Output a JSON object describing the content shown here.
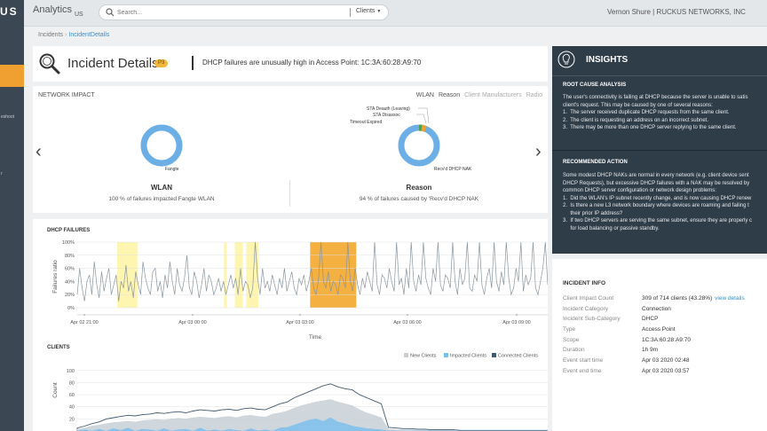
{
  "sidebar": {
    "logo": "US",
    "item_fragments": [
      "eshoot",
      "r"
    ]
  },
  "topbar": {
    "app_title": "Analytics",
    "region": "US",
    "search_placeholder": "Search...",
    "search_scope": "Clients",
    "user": "Vernon Shure | RUCKUS NETWORKS, INC"
  },
  "breadcrumb": {
    "root": "Incidents",
    "separator": "›",
    "current": "IncidentDetails"
  },
  "header": {
    "title": "Incident Details",
    "priority": "P3",
    "headline": "DHCP failures are unusually high in Access Point: 1C:3A:60:28:A9:70"
  },
  "impact": {
    "title": "NETWORK IMPACT",
    "tabs": [
      "WLAN",
      "Reason",
      "Client Manufacturers",
      "Radio"
    ],
    "wlan": {
      "heading": "WLAN",
      "summary": "100 % of failures impacted Fangte WLAN",
      "slices": [
        {
          "label": "Fangte",
          "value": 100
        }
      ]
    },
    "reason": {
      "heading": "Reason",
      "summary": "94 % of failures caused by 'Recv'd DHCP NAK",
      "slices": [
        {
          "label": "Recv'd DHCP NAK",
          "value": 94
        },
        {
          "label": "Timeout Expired",
          "value": 2
        },
        {
          "label": "STA Disassoc",
          "value": 2
        },
        {
          "label": "STA Deauth (Leaving)",
          "value": 2
        }
      ]
    },
    "arrow_left": "‹",
    "arrow_right": "›"
  },
  "dhcp_chart": {
    "title": "DHCP FAILURES",
    "ylabel": "Failures ratio",
    "xlabel": "Time",
    "yticks": [
      "100%",
      "80%",
      "60%",
      "40%",
      "20%",
      "0%"
    ],
    "xticks": [
      "Apr 02 21:00",
      "Apr 03 00:00",
      "Apr 03 03:00",
      "Apr 03 06:00",
      "Apr 03 09:00"
    ]
  },
  "clients_chart": {
    "title": "CLIENTS",
    "ylabel": "Count",
    "yticks": [
      "100",
      "80",
      "60",
      "40",
      "20"
    ],
    "legend": [
      "New Clients",
      "Impacted Clients",
      "Connected Clients"
    ]
  },
  "chart_data": [
    {
      "type": "line",
      "title": "DHCP FAILURES",
      "ylabel": "Failures ratio",
      "xlabel": "Time",
      "ylim": [
        0,
        100
      ],
      "x_ticks": [
        "Apr 02 21:00",
        "Apr 03 00:00",
        "Apr 03 03:00",
        "Apr 03 06:00",
        "Apr 03 09:00"
      ],
      "series": [
        {
          "values": [
            20,
            60,
            30,
            10,
            40,
            50,
            20,
            70,
            35,
            15,
            55,
            25,
            45,
            60,
            20,
            35,
            50,
            10,
            40,
            30,
            65,
            25,
            40,
            15,
            55,
            35,
            20,
            70,
            45,
            30,
            20,
            55,
            60,
            25,
            40,
            15,
            50,
            30,
            70,
            40,
            20,
            60,
            35,
            25,
            45,
            80,
            30,
            20,
            55,
            40,
            15,
            35,
            60,
            25,
            50,
            40,
            20,
            30,
            45,
            25,
            40,
            20,
            35,
            50,
            30,
            45,
            20,
            60,
            25,
            40,
            35,
            15,
            30,
            100,
            45,
            20,
            60,
            30,
            40,
            25,
            50,
            35,
            20,
            45,
            30,
            60,
            25,
            40,
            55,
            30,
            20,
            45,
            35,
            50,
            25,
            40,
            60,
            30,
            20,
            45,
            100,
            40,
            30,
            55,
            25,
            40,
            35,
            20,
            50,
            45,
            30,
            100,
            40,
            25,
            60,
            35,
            20,
            45,
            30,
            55,
            40,
            25,
            100,
            35,
            20,
            50,
            45,
            30,
            60,
            40,
            25,
            100,
            35,
            45,
            20,
            60,
            30,
            100,
            40,
            25,
            50,
            35,
            100,
            45,
            30,
            20,
            60,
            40,
            100,
            35,
            25,
            50,
            45,
            30,
            100,
            40,
            20,
            60,
            35,
            45,
            100,
            30,
            25,
            50,
            40,
            100,
            35,
            20,
            45,
            60,
            30,
            100,
            40,
            25,
            55,
            35,
            100,
            45,
            20,
            30,
            60,
            40,
            100,
            25,
            50,
            35,
            45,
            100,
            30,
            20,
            40,
            60,
            100,
            35
          ]
        }
      ],
      "highlight_bands": [
        {
          "from": 0.085,
          "to": 0.128,
          "color": "#fdf5b0"
        },
        {
          "from": 0.312,
          "to": 0.318,
          "color": "#fdf5b0"
        },
        {
          "from": 0.335,
          "to": 0.352,
          "color": "#fdf5b0"
        },
        {
          "from": 0.359,
          "to": 0.385,
          "color": "#fdf5b0"
        },
        {
          "from": 0.495,
          "to": 0.593,
          "color": "#f4b040"
        }
      ]
    },
    {
      "type": "area",
      "title": "CLIENTS",
      "ylabel": "Count",
      "ylim": [
        0,
        110
      ],
      "series": [
        {
          "name": "Connected Clients",
          "color": "#425a6e",
          "values": [
            5,
            8,
            12,
            15,
            20,
            22,
            24,
            26,
            25,
            27,
            28,
            30,
            29,
            31,
            32,
            30,
            33,
            35,
            34,
            33,
            35,
            36,
            34,
            37,
            38,
            36,
            35,
            40,
            45,
            48,
            55,
            60,
            65,
            70,
            75,
            78,
            73,
            70,
            68,
            60,
            55,
            50,
            45,
            6,
            5,
            4,
            4,
            3,
            3,
            2,
            2,
            2,
            2,
            1,
            1,
            1,
            1,
            1,
            1,
            1,
            1,
            1,
            1,
            1,
            1,
            1
          ]
        },
        {
          "name": "New Clients",
          "color": "#c8d0d6",
          "values": [
            3,
            5,
            8,
            10,
            12,
            14,
            15,
            16,
            15,
            17,
            18,
            19,
            18,
            20,
            21,
            20,
            22,
            23,
            22,
            21,
            23,
            24,
            22,
            25,
            26,
            24,
            23,
            28,
            30,
            33,
            38,
            42,
            45,
            48,
            50,
            52,
            48,
            45,
            42,
            35,
            30,
            26,
            22,
            3,
            2,
            2,
            2,
            1,
            1,
            1,
            1,
            1,
            1,
            0,
            0,
            0,
            0,
            0,
            0,
            0,
            0,
            0,
            0,
            0,
            0,
            0
          ]
        },
        {
          "name": "Impacted Clients",
          "color": "#7ec0ec",
          "values": [
            0,
            2,
            0,
            3,
            0,
            4,
            1,
            5,
            0,
            3,
            2,
            0,
            4,
            0,
            2,
            3,
            0,
            5,
            0,
            2,
            0,
            3,
            1,
            0,
            4,
            0,
            2,
            0,
            5,
            6,
            10,
            14,
            18,
            20,
            16,
            22,
            15,
            12,
            8,
            6,
            4,
            3,
            2,
            0,
            0,
            0,
            0,
            0,
            0,
            0,
            0,
            0,
            0,
            0,
            0,
            0,
            0,
            0,
            0,
            0,
            0,
            0,
            0,
            0,
            0,
            0
          ]
        }
      ]
    }
  ],
  "insights": {
    "title": "INSIGHTS",
    "root_cause_title": "ROOT CAUSE ANALYSIS",
    "root_cause_text": "The user's connectivity is failing at DHCP because the server is unable to satis\nclient's request. This may be caused by one of several reasons:\n1.  The server received duplicate DHCP requests from the same client.\n2.  The client is requesting an address on an incorrect subnet.\n3.  There may be more than one DHCP server replying to the same client.",
    "rec_title": "RECOMMENDED ACTION",
    "rec_text": "Some modest DHCP NAKs are normal in every network (e.g. client device sent\nDHCP Requests), but excessive DHCP failures with a NAK may be resolved by\ncommon DHCP server configuration or network design problems:\n1.  Did the WLAN's IP subnet recently change, and is now causing DHCP renew\n2.  Is there a new L3 network boundary where devices are roaming and failing t\n     their prior IP address?\n3.  If two DHCP servers are serving the same subnet, ensure they are properly c\n     for load balancing or passive standby."
  },
  "incident_info": {
    "title": "INCIDENT INFO",
    "rows": [
      {
        "label": "Client Impact Count",
        "value": "309 of 714 clients (43.28%)",
        "link": "view details"
      },
      {
        "label": "Incident Category",
        "value": "Connection"
      },
      {
        "label": "Incident Sub-Category",
        "value": "DHCP"
      },
      {
        "label": "Type",
        "value": "Access Point"
      },
      {
        "label": "Scope",
        "value": "1C:3A:60:28:A9:70"
      },
      {
        "label": "Duration",
        "value": "1h 9m"
      },
      {
        "label": "Event start time",
        "value": "Apr 03 2020 02:48"
      },
      {
        "label": "Event end time",
        "value": "Apr 03 2020 03:57"
      }
    ]
  }
}
